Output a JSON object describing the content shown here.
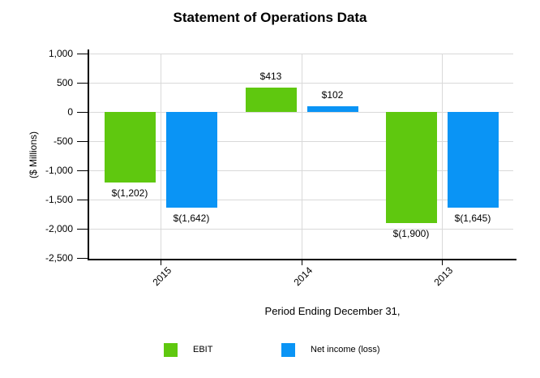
{
  "chart_data": {
    "type": "bar",
    "title": "Statement of Operations Data",
    "xlabel": "Period Ending December 31,",
    "ylabel": "($ Millions)",
    "categories": [
      "2015",
      "2014",
      "2013"
    ],
    "series": [
      {
        "name": "EBIT",
        "color": "#5fc80f",
        "values": [
          -1202,
          413,
          -1900
        ],
        "labels": [
          "$(1,202)",
          "$413",
          "$(1,900)"
        ]
      },
      {
        "name": "Net income (loss)",
        "color": "#0a94f5",
        "values": [
          -1642,
          102,
          -1645
        ],
        "labels": [
          "$(1,642)",
          "$102",
          "$(1,645)"
        ]
      }
    ],
    "ylim": [
      -2500,
      1000
    ],
    "yticks": [
      1000,
      500,
      0,
      -500,
      -1000,
      -1500,
      -2000,
      -2500
    ],
    "ytick_labels": [
      "1,000",
      "500",
      "0",
      "-500",
      "-1,000",
      "-1,500",
      "-2,000",
      "-2,500"
    ],
    "grid": true,
    "legend_position": "bottom",
    "axis_color": "#000000",
    "grid_color": "#d9d9d9",
    "background": "#ffffff"
  }
}
